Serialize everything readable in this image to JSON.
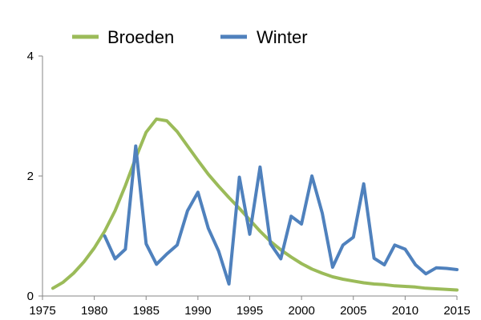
{
  "chart_data": {
    "type": "line",
    "title": "",
    "xlabel": "",
    "ylabel": "",
    "xlim": [
      1975,
      2015
    ],
    "ylim": [
      0,
      4
    ],
    "x_ticks": [
      "1975",
      "1980",
      "1985",
      "1990",
      "1995",
      "2000",
      "2005",
      "2010",
      "2015"
    ],
    "y_ticks": [
      "0",
      "2",
      "4"
    ],
    "grid": false,
    "legend_position": "top",
    "series": [
      {
        "name": "Broeden",
        "color": "#9bbb59",
        "x": [
          1976,
          1977,
          1978,
          1979,
          1980,
          1981,
          1982,
          1983,
          1984,
          1985,
          1986,
          1987,
          1988,
          1989,
          1990,
          1991,
          1992,
          1993,
          1994,
          1995,
          1996,
          1997,
          1998,
          1999,
          2000,
          2001,
          2002,
          2003,
          2004,
          2005,
          2006,
          2007,
          2008,
          2009,
          2010,
          2011,
          2012,
          2013,
          2014,
          2015
        ],
        "values": [
          0.13,
          0.23,
          0.38,
          0.57,
          0.8,
          1.08,
          1.42,
          1.84,
          2.3,
          2.73,
          2.95,
          2.92,
          2.74,
          2.5,
          2.26,
          2.03,
          1.83,
          1.64,
          1.46,
          1.27,
          1.08,
          0.91,
          0.77,
          0.65,
          0.54,
          0.45,
          0.38,
          0.32,
          0.28,
          0.25,
          0.22,
          0.2,
          0.19,
          0.17,
          0.16,
          0.15,
          0.13,
          0.12,
          0.11,
          0.1
        ]
      },
      {
        "name": "Winter",
        "color": "#4f81bd",
        "x": [
          1981,
          1982,
          1983,
          1984,
          1985,
          1986,
          1987,
          1988,
          1989,
          1990,
          1991,
          1992,
          1993,
          1994,
          1995,
          1996,
          1997,
          1998,
          1999,
          2000,
          2001,
          2002,
          2003,
          2004,
          2005,
          2006,
          2007,
          2008,
          2009,
          2010,
          2011,
          2012,
          2013,
          2014,
          2015
        ],
        "values": [
          1.0,
          0.62,
          0.78,
          2.5,
          0.87,
          0.53,
          0.7,
          0.85,
          1.42,
          1.73,
          1.13,
          0.75,
          0.2,
          1.98,
          1.03,
          2.15,
          0.87,
          0.62,
          1.33,
          1.2,
          2.0,
          1.38,
          0.48,
          0.85,
          0.98,
          1.87,
          0.63,
          0.52,
          0.85,
          0.78,
          0.52,
          0.37,
          0.47,
          0.46,
          0.44
        ]
      }
    ]
  }
}
